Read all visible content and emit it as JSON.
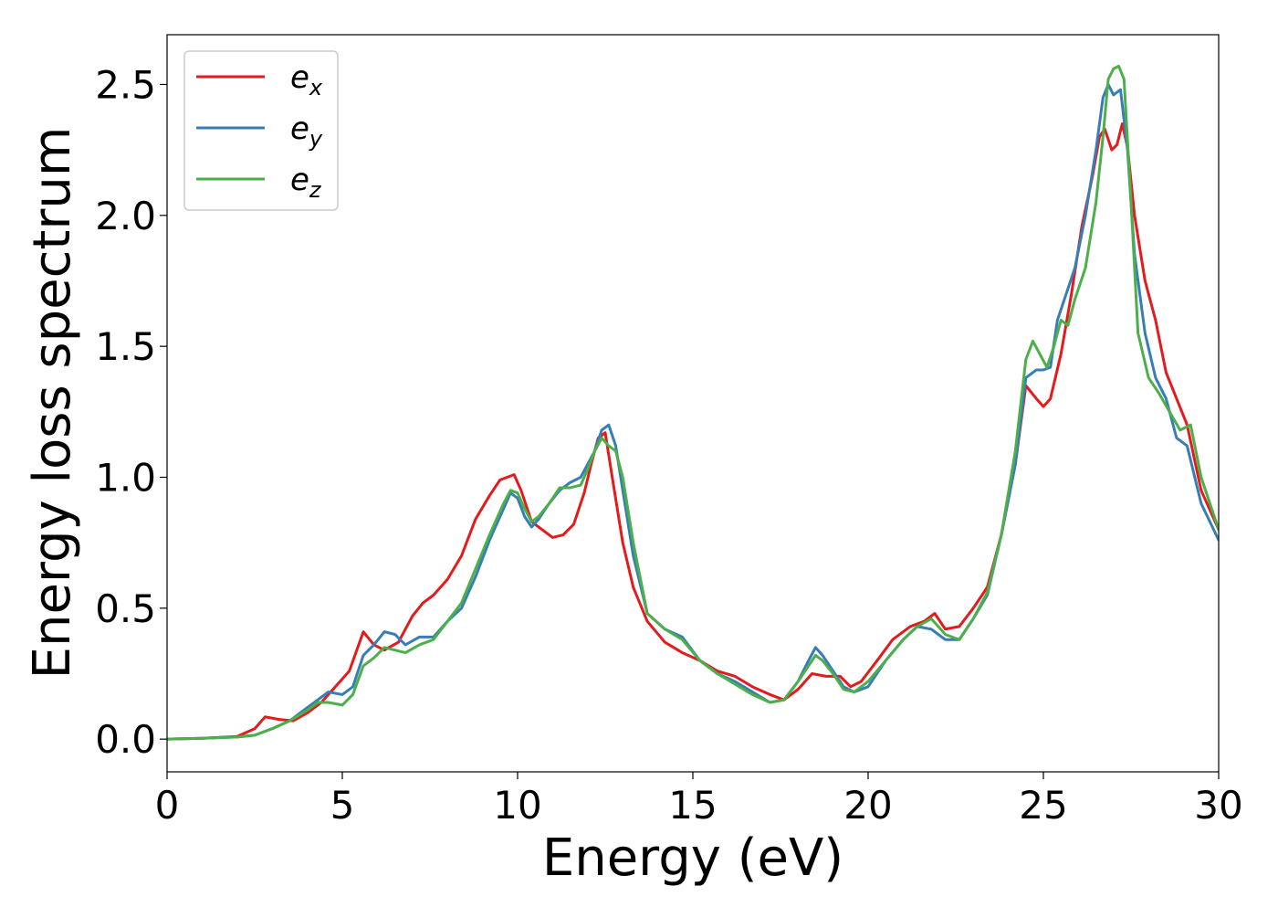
{
  "chart_data": {
    "type": "line",
    "title": "",
    "xlabel": "Energy (eV)",
    "ylabel": "Energy loss spectrum",
    "xlim": [
      0,
      30
    ],
    "ylim": [
      -0.125,
      2.69
    ],
    "xticks": [
      0,
      5,
      10,
      15,
      20,
      25,
      30
    ],
    "xtick_labels": [
      "0",
      "5",
      "10",
      "15",
      "20",
      "25",
      "30"
    ],
    "yticks": [
      0.0,
      0.5,
      1.0,
      1.5,
      2.0,
      2.5
    ],
    "ytick_labels": [
      "0.0",
      "0.5",
      "1.0",
      "1.5",
      "2.0",
      "2.5"
    ],
    "grid": false,
    "legend_position": "top-left",
    "series": [
      {
        "name": "e_x",
        "label_base": "e",
        "label_sub": "x",
        "color": "#e41a1c",
        "x": [
          0,
          1,
          2,
          2.5,
          2.8,
          3.2,
          3.6,
          4.0,
          4.4,
          4.8,
          5.2,
          5.6,
          5.9,
          6.2,
          6.6,
          7.0,
          7.3,
          7.6,
          8.0,
          8.4,
          8.8,
          9.2,
          9.5,
          9.7,
          9.9,
          10.1,
          10.4,
          10.7,
          11.0,
          11.3,
          11.6,
          11.9,
          12.1,
          12.3,
          12.5,
          12.7,
          13.0,
          13.3,
          13.7,
          14.2,
          14.7,
          15.2,
          15.7,
          16.2,
          16.7,
          17.2,
          17.6,
          18.0,
          18.4,
          18.8,
          19.2,
          19.5,
          19.8,
          20.2,
          20.7,
          21.2,
          21.6,
          21.9,
          22.2,
          22.6,
          23.0,
          23.4,
          23.8,
          24.2,
          24.5,
          24.8,
          25.0,
          25.2,
          25.5,
          25.8,
          26.1,
          26.4,
          26.6,
          26.75,
          26.95,
          27.1,
          27.25,
          27.4,
          27.6,
          27.9,
          28.2,
          28.5,
          28.8,
          29.1,
          29.5,
          30.0
        ],
        "y": [
          0,
          0.003,
          0.01,
          0.04,
          0.085,
          0.075,
          0.07,
          0.1,
          0.14,
          0.2,
          0.26,
          0.41,
          0.36,
          0.34,
          0.37,
          0.47,
          0.52,
          0.55,
          0.61,
          0.7,
          0.84,
          0.93,
          0.99,
          1.0,
          1.01,
          0.95,
          0.83,
          0.8,
          0.77,
          0.78,
          0.82,
          0.94,
          1.05,
          1.15,
          1.17,
          1.0,
          0.75,
          0.58,
          0.45,
          0.37,
          0.33,
          0.3,
          0.26,
          0.24,
          0.2,
          0.17,
          0.15,
          0.19,
          0.25,
          0.24,
          0.24,
          0.2,
          0.22,
          0.29,
          0.38,
          0.43,
          0.45,
          0.48,
          0.42,
          0.43,
          0.5,
          0.58,
          0.78,
          1.05,
          1.35,
          1.3,
          1.27,
          1.3,
          1.47,
          1.7,
          1.96,
          2.15,
          2.3,
          2.33,
          2.25,
          2.27,
          2.35,
          2.26,
          2.0,
          1.75,
          1.6,
          1.4,
          1.3,
          1.2,
          0.95,
          0.8
        ]
      },
      {
        "name": "e_y",
        "label_base": "e",
        "label_sub": "y",
        "color": "#377eb8",
        "x": [
          0,
          1,
          2,
          2.5,
          3.0,
          3.5,
          4.0,
          4.3,
          4.6,
          5.0,
          5.3,
          5.6,
          5.9,
          6.2,
          6.5,
          6.8,
          7.2,
          7.6,
          8.0,
          8.4,
          8.8,
          9.2,
          9.6,
          9.8,
          10.0,
          10.2,
          10.4,
          10.6,
          10.9,
          11.2,
          11.5,
          11.8,
          12.0,
          12.2,
          12.4,
          12.6,
          12.8,
          13.0,
          13.3,
          13.7,
          14.2,
          14.7,
          15.2,
          15.7,
          16.2,
          16.7,
          17.2,
          17.6,
          18.0,
          18.3,
          18.5,
          18.7,
          19.0,
          19.3,
          19.6,
          20.0,
          20.5,
          21.0,
          21.4,
          21.8,
          22.2,
          22.6,
          23.0,
          23.4,
          23.8,
          24.2,
          24.5,
          24.8,
          25.0,
          25.2,
          25.4,
          25.6,
          25.9,
          26.2,
          26.5,
          26.7,
          26.85,
          27.0,
          27.1,
          27.2,
          27.4,
          27.6,
          27.9,
          28.2,
          28.5,
          28.8,
          29.1,
          29.5,
          30.0
        ],
        "y": [
          0,
          0.003,
          0.008,
          0.015,
          0.04,
          0.07,
          0.12,
          0.15,
          0.18,
          0.17,
          0.2,
          0.32,
          0.36,
          0.41,
          0.4,
          0.36,
          0.39,
          0.39,
          0.45,
          0.5,
          0.62,
          0.76,
          0.88,
          0.94,
          0.92,
          0.85,
          0.81,
          0.84,
          0.9,
          0.95,
          0.98,
          1.0,
          1.05,
          1.1,
          1.18,
          1.2,
          1.12,
          0.95,
          0.7,
          0.48,
          0.42,
          0.39,
          0.3,
          0.25,
          0.22,
          0.18,
          0.14,
          0.15,
          0.22,
          0.3,
          0.35,
          0.32,
          0.26,
          0.2,
          0.18,
          0.2,
          0.3,
          0.38,
          0.43,
          0.42,
          0.38,
          0.38,
          0.46,
          0.55,
          0.78,
          1.05,
          1.38,
          1.41,
          1.41,
          1.42,
          1.6,
          1.68,
          1.8,
          2.0,
          2.25,
          2.45,
          2.5,
          2.46,
          2.47,
          2.48,
          2.25,
          1.85,
          1.55,
          1.38,
          1.3,
          1.15,
          1.12,
          0.9,
          0.76
        ]
      },
      {
        "name": "e_z",
        "label_base": "e",
        "label_sub": "z",
        "color": "#4daf4a",
        "x": [
          0,
          1,
          2,
          2.5,
          3.0,
          3.5,
          4.0,
          4.3,
          4.6,
          5.0,
          5.3,
          5.6,
          5.9,
          6.2,
          6.5,
          6.8,
          7.2,
          7.6,
          8.0,
          8.4,
          8.8,
          9.2,
          9.6,
          9.8,
          10.0,
          10.2,
          10.4,
          10.6,
          10.9,
          11.2,
          11.5,
          11.8,
          12.0,
          12.2,
          12.4,
          12.6,
          12.8,
          13.0,
          13.3,
          13.7,
          14.2,
          14.7,
          15.2,
          15.7,
          16.2,
          16.7,
          17.2,
          17.6,
          18.0,
          18.3,
          18.5,
          18.7,
          19.0,
          19.3,
          19.6,
          20.0,
          20.5,
          21.0,
          21.4,
          21.8,
          22.2,
          22.6,
          23.0,
          23.4,
          23.8,
          24.2,
          24.5,
          24.7,
          24.9,
          25.1,
          25.3,
          25.5,
          25.7,
          25.9,
          26.2,
          26.5,
          26.7,
          26.85,
          27.0,
          27.15,
          27.3,
          27.5,
          27.7,
          28.0,
          28.3,
          28.6,
          28.9,
          29.2,
          29.5,
          30.0
        ],
        "y": [
          0,
          0.003,
          0.008,
          0.015,
          0.04,
          0.07,
          0.11,
          0.14,
          0.14,
          0.13,
          0.17,
          0.28,
          0.31,
          0.35,
          0.34,
          0.33,
          0.36,
          0.38,
          0.45,
          0.52,
          0.65,
          0.78,
          0.9,
          0.95,
          0.94,
          0.88,
          0.83,
          0.85,
          0.9,
          0.96,
          0.96,
          0.97,
          1.03,
          1.1,
          1.15,
          1.12,
          1.1,
          1.0,
          0.75,
          0.48,
          0.42,
          0.38,
          0.3,
          0.25,
          0.21,
          0.17,
          0.14,
          0.15,
          0.22,
          0.28,
          0.32,
          0.3,
          0.25,
          0.19,
          0.18,
          0.22,
          0.3,
          0.38,
          0.43,
          0.46,
          0.4,
          0.38,
          0.46,
          0.56,
          0.78,
          1.1,
          1.45,
          1.52,
          1.47,
          1.42,
          1.5,
          1.6,
          1.58,
          1.68,
          1.8,
          2.05,
          2.3,
          2.52,
          2.56,
          2.57,
          2.52,
          2.05,
          1.55,
          1.38,
          1.32,
          1.25,
          1.18,
          1.2,
          1.0,
          0.8
        ]
      }
    ]
  }
}
